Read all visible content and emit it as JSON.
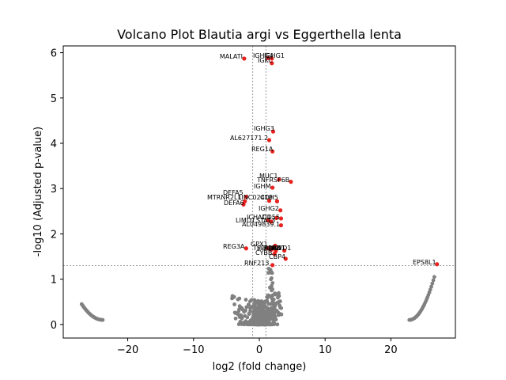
{
  "chart_data": {
    "type": "scatter",
    "title": "Volcano Plot Blautia argi vs Eggerthella lenta",
    "xlabel": "log2 (fold change)",
    "ylabel": "-log10 (Adjusted p-value)",
    "xlim": [
      -29.8,
      29.8
    ],
    "ylim": [
      -0.3,
      6.15
    ],
    "xticks": [
      -20,
      -10,
      0,
      10,
      20
    ],
    "yticks": [
      0,
      1,
      2,
      3,
      4,
      5,
      6
    ],
    "thresholds": {
      "log2fc": [
        -1,
        1
      ],
      "neglog10p": 1.3
    },
    "colors": {
      "significant": "#e8231f",
      "not_significant": "#808080",
      "threshold_line": "#808080"
    },
    "significant_points": [
      {
        "label": "MALATI",
        "x": -2.3,
        "y": 5.87
      },
      {
        "label": "IGHG4",
        "x": 1.3,
        "y": 5.88
      },
      {
        "label": "IGHG1",
        "x": 1.9,
        "y": 5.87
      },
      {
        "label": "IGKC",
        "x": 1.9,
        "y": 5.77
      },
      {
        "label": "IGHG3",
        "x": 2.1,
        "y": 4.26
      },
      {
        "label": "AL627171.2",
        "x": 1.5,
        "y": 4.07
      },
      {
        "label": "REG1A",
        "x": 2.0,
        "y": 3.82
      },
      {
        "label": "MUC1",
        "x": 3.0,
        "y": 3.2
      },
      {
        "label": "TNFRSF6B",
        "x": 4.8,
        "y": 3.15
      },
      {
        "label": "IGHM",
        "x": 2.0,
        "y": 3.02
      },
      {
        "label": "DEFA5",
        "x": -2.0,
        "y": 2.82
      },
      {
        "label": "MTRNR2L1",
        "x": -2.2,
        "y": 2.72
      },
      {
        "label": "LINC02418",
        "x": 1.5,
        "y": 2.73
      },
      {
        "label": "CDH5",
        "x": 2.7,
        "y": 2.72
      },
      {
        "label": "DEFA6",
        "x": -2.4,
        "y": 2.65
      },
      {
        "label": "IGHG2",
        "x": 3.2,
        "y": 2.52
      },
      {
        "label": "CD55",
        "x": 3.3,
        "y": 2.34
      },
      {
        "label": "ICHAD1",
        "x": 2.6,
        "y": 2.35
      },
      {
        "label": "LIMD1",
        "x": 1.3,
        "y": 2.3
      },
      {
        "label": "STAT3",
        "x": 1.8,
        "y": 2.27
      },
      {
        "label": "AL049839.1",
        "x": 3.3,
        "y": 2.19
      },
      {
        "label": "GPX1",
        "x": 2.4,
        "y": 1.74
      },
      {
        "label": "TSPAN1",
        "x": 1.3,
        "y": 1.68
      },
      {
        "label": "HDAC1",
        "x": 1.8,
        "y": 1.65
      },
      {
        "label": "PLPPR3",
        "x": 2.1,
        "y": 1.68
      },
      {
        "label": "LPO",
        "x": 2.5,
        "y": 1.62
      },
      {
        "label": "RFWD1",
        "x": 3.8,
        "y": 1.63
      },
      {
        "label": "REG3A",
        "x": -2.0,
        "y": 1.68
      },
      {
        "label": "CYBB",
        "x": 2.3,
        "y": 1.56
      },
      {
        "label": "CBP4",
        "x": 4.0,
        "y": 1.45
      },
      {
        "label": "RNF213",
        "x": 2.0,
        "y": 1.31
      },
      {
        "label": "EPS8L1",
        "x": 27.0,
        "y": 1.33
      }
    ]
  },
  "annotations": [
    {
      "text": "MALATI"
    },
    {
      "text": "IGHG4"
    },
    {
      "text": "IGHG1"
    },
    {
      "text": "IGKC"
    },
    {
      "text": "IGHG3"
    },
    {
      "text": "AL627171.2"
    },
    {
      "text": "REG1A"
    },
    {
      "text": "MUC1"
    },
    {
      "text": "TNFRSF6B"
    },
    {
      "text": "IGHM"
    },
    {
      "text": "DEFA5"
    },
    {
      "text": "MTRNR2L1"
    },
    {
      "text": "LINC02418"
    },
    {
      "text": "CDH5"
    },
    {
      "text": "DEFA6"
    },
    {
      "text": "IGHG2"
    },
    {
      "text": "ICHAD1"
    },
    {
      "text": "CD55"
    },
    {
      "text": "LIMD1"
    },
    {
      "text": "STAT3"
    },
    {
      "text": "AL049839.1"
    },
    {
      "text": "GPX1"
    },
    {
      "text": "TSPAN1"
    },
    {
      "text": "HDAC1"
    },
    {
      "text": "PLPPR3"
    },
    {
      "text": "LPO"
    },
    {
      "text": "RFWD1"
    },
    {
      "text": "REG3A"
    },
    {
      "text": "CYBB"
    },
    {
      "text": "CBP4"
    },
    {
      "text": "RNF213"
    },
    {
      "text": "EPS8L1"
    }
  ]
}
